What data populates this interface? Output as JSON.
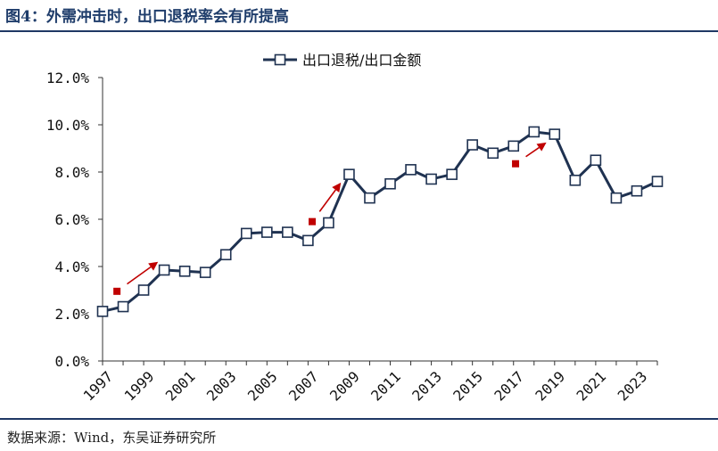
{
  "figure_title": "图4：外需冲击时，出口退税率会有所提高",
  "source": "数据来源：Wind，东吴证券研究所",
  "colors": {
    "series": "#1f3251",
    "marker_fill": "#ffffff",
    "arrow": "#c00000",
    "rule": "#1f3864"
  },
  "chart_data": {
    "type": "line",
    "title": "",
    "xlabel": "",
    "ylabel": "",
    "x_ticks": [
      "1997",
      "1999",
      "2001",
      "2003",
      "2005",
      "2007",
      "2009",
      "2011",
      "2013",
      "2015",
      "2017",
      "2019",
      "2021",
      "2023"
    ],
    "y_ticks": [
      "0.0%",
      "2.0%",
      "4.0%",
      "6.0%",
      "8.0%",
      "10.0%",
      "12.0%"
    ],
    "ylim": [
      0,
      12
    ],
    "xlim": [
      1997,
      2024
    ],
    "grid": false,
    "legend_position": "top-center",
    "series": [
      {
        "name": "出口退税/出口金额",
        "x": [
          1997,
          1998,
          1999,
          2000,
          2001,
          2002,
          2003,
          2004,
          2005,
          2006,
          2007,
          2008,
          2009,
          2010,
          2011,
          2012,
          2013,
          2014,
          2015,
          2016,
          2017,
          2018,
          2019,
          2020,
          2021,
          2022,
          2023,
          2024
        ],
        "values": [
          2.1,
          2.3,
          3.0,
          3.85,
          3.8,
          3.75,
          4.5,
          5.4,
          5.45,
          5.45,
          5.1,
          5.85,
          7.9,
          6.9,
          7.5,
          8.1,
          7.7,
          7.9,
          9.15,
          8.8,
          9.1,
          9.7,
          9.6,
          7.65,
          8.5,
          6.9,
          7.2,
          7.6
        ]
      }
    ],
    "annotations": [
      {
        "type": "arrow",
        "from": [
          1997.7,
          2.95
        ],
        "to": [
          1999.7,
          4.2
        ]
      },
      {
        "type": "arrow",
        "from": [
          2007.2,
          5.9
        ],
        "to": [
          2008.6,
          7.55
        ]
      },
      {
        "type": "arrow",
        "from": [
          2017.1,
          8.35
        ],
        "to": [
          2018.6,
          9.25
        ]
      }
    ]
  }
}
